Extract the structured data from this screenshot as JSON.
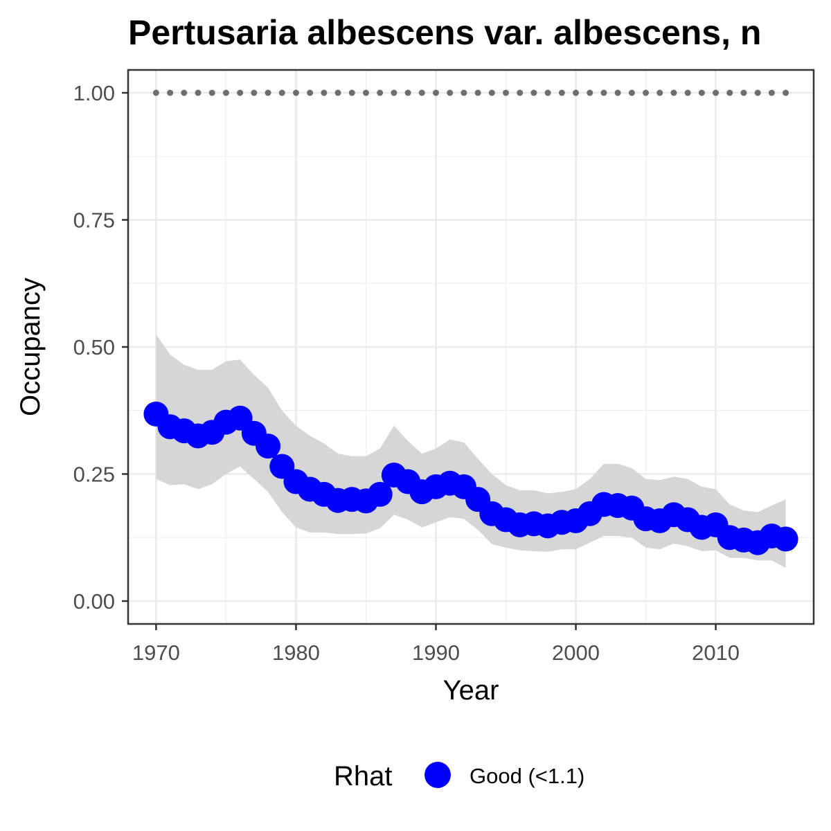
{
  "chart_data": {
    "type": "line",
    "title": "Pertusaria albescens var. albescens, n",
    "xlabel": "Year",
    "ylabel": "Occupancy",
    "xlim": [
      1968,
      2017
    ],
    "ylim": [
      -0.045,
      1.045
    ],
    "x_ticks": [
      1970,
      1980,
      1990,
      2000,
      2010
    ],
    "y_ticks": [
      0.0,
      0.25,
      0.5,
      0.75,
      1.0
    ],
    "x_tick_labels": [
      "1970",
      "1980",
      "1990",
      "2000",
      "2010"
    ],
    "y_tick_labels": [
      "0.00",
      "0.25",
      "0.50",
      "0.75",
      "1.00"
    ],
    "grid": true,
    "x": [
      1970,
      1971,
      1972,
      1973,
      1974,
      1975,
      1976,
      1977,
      1978,
      1979,
      1980,
      1981,
      1982,
      1983,
      1984,
      1985,
      1986,
      1987,
      1988,
      1989,
      1990,
      1991,
      1992,
      1993,
      1994,
      1995,
      1996,
      1997,
      1998,
      1999,
      2000,
      2001,
      2002,
      2003,
      2004,
      2005,
      2006,
      2007,
      2008,
      2009,
      2010,
      2011,
      2012,
      2013,
      2014,
      2015
    ],
    "series": [
      {
        "name": "Good (<1.1)",
        "color": "#0000ff",
        "values": [
          0.368,
          0.343,
          0.335,
          0.325,
          0.332,
          0.352,
          0.36,
          0.33,
          0.305,
          0.265,
          0.235,
          0.22,
          0.21,
          0.198,
          0.2,
          0.197,
          0.21,
          0.248,
          0.235,
          0.215,
          0.225,
          0.232,
          0.225,
          0.2,
          0.172,
          0.16,
          0.15,
          0.152,
          0.148,
          0.155,
          0.158,
          0.172,
          0.19,
          0.188,
          0.183,
          0.162,
          0.158,
          0.17,
          0.16,
          0.145,
          0.15,
          0.125,
          0.12,
          0.115,
          0.128,
          0.122
        ]
      }
    ],
    "ribbon": {
      "color": "#d6d6d6",
      "lower": [
        0.24,
        0.228,
        0.23,
        0.22,
        0.23,
        0.25,
        0.265,
        0.24,
        0.215,
        0.175,
        0.145,
        0.135,
        0.135,
        0.132,
        0.132,
        0.133,
        0.143,
        0.17,
        0.16,
        0.145,
        0.155,
        0.165,
        0.162,
        0.14,
        0.112,
        0.105,
        0.1,
        0.098,
        0.097,
        0.102,
        0.102,
        0.115,
        0.128,
        0.128,
        0.125,
        0.105,
        0.102,
        0.113,
        0.108,
        0.098,
        0.1,
        0.085,
        0.085,
        0.08,
        0.08,
        0.065
      ],
      "upper": [
        0.525,
        0.485,
        0.465,
        0.455,
        0.455,
        0.472,
        0.475,
        0.445,
        0.42,
        0.375,
        0.345,
        0.325,
        0.31,
        0.29,
        0.285,
        0.285,
        0.3,
        0.345,
        0.315,
        0.29,
        0.3,
        0.318,
        0.312,
        0.28,
        0.25,
        0.228,
        0.218,
        0.218,
        0.212,
        0.215,
        0.22,
        0.24,
        0.27,
        0.27,
        0.262,
        0.24,
        0.238,
        0.245,
        0.24,
        0.225,
        0.22,
        0.19,
        0.178,
        0.175,
        0.188,
        0.2
      ]
    },
    "reference_line": {
      "y": 1.0,
      "style": "dotted",
      "color": "#6e6e6e"
    },
    "legend": {
      "title": "Rhat",
      "position": "bottom",
      "items": [
        {
          "label": "Good (<1.1)",
          "color": "#0000ff"
        }
      ]
    }
  }
}
